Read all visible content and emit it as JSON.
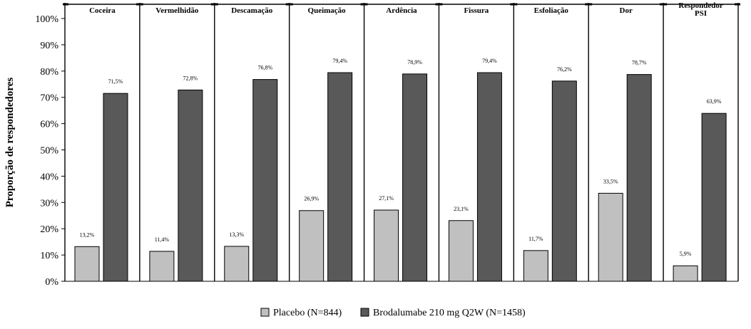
{
  "chart_data": {
    "type": "bar",
    "title": "",
    "ylabel": "Proporção de respondedores",
    "xlabel": "",
    "ylim": [
      0,
      100
    ],
    "yticks": [
      0,
      10,
      20,
      30,
      40,
      50,
      60,
      70,
      80,
      90,
      100
    ],
    "ytick_labels": [
      "0%",
      "10%",
      "20%",
      "30%",
      "40%",
      "50%",
      "60%",
      "70%",
      "80%",
      "90%",
      "100%"
    ],
    "grid": false,
    "legend_position": "bottom-center",
    "categories": [
      [
        "Coceira"
      ],
      [
        "Vermelhidão"
      ],
      [
        "Descamação"
      ],
      [
        "Queimação"
      ],
      [
        "Ardência"
      ],
      [
        "Fissura"
      ],
      [
        "Esfoliação"
      ],
      [
        "Dor"
      ],
      [
        "Respondedor",
        "PSI"
      ]
    ],
    "series": [
      {
        "name": "Placebo (N=844)",
        "color": "#c0c0c0",
        "values": [
          13.2,
          11.4,
          13.3,
          26.9,
          27.1,
          23.1,
          11.7,
          33.5,
          5.9
        ],
        "labels": [
          "13,2%",
          "11,4%",
          "13,3%",
          "26,9%",
          "27,1%",
          "23,1%",
          "11,7%",
          "33,5%",
          "5,9%"
        ]
      },
      {
        "name": "Brodalumabe 210 mg Q2W (N=1458)",
        "color": "#595959",
        "values": [
          71.5,
          72.8,
          76.8,
          79.4,
          78.9,
          79.4,
          76.2,
          78.7,
          63.9
        ],
        "labels": [
          "71,5%",
          "72,8%",
          "76,8%",
          "79,4%",
          "78,9%",
          "79,4%",
          "76,2%",
          "78,7%",
          "63,9%"
        ]
      }
    ]
  }
}
